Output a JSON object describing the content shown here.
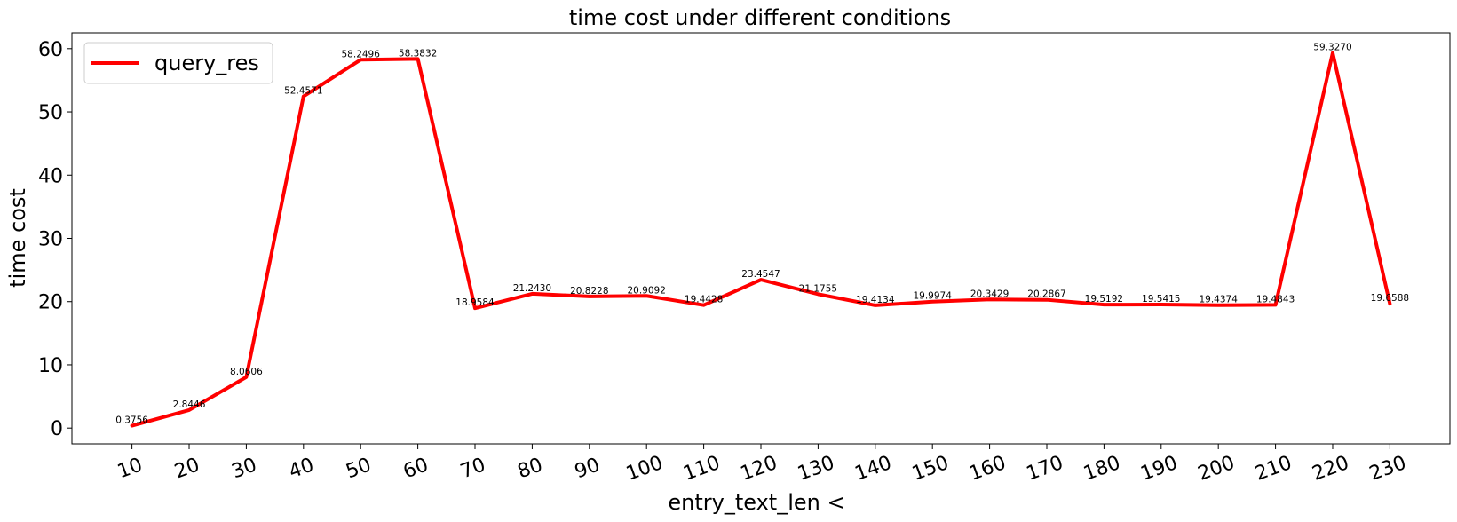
{
  "chart_data": {
    "type": "line",
    "title": "time cost under different conditions",
    "xlabel": "entry_text_len <",
    "ylabel": "time cost",
    "x": [
      10,
      20,
      30,
      40,
      50,
      60,
      70,
      80,
      90,
      100,
      110,
      120,
      130,
      140,
      150,
      160,
      170,
      180,
      190,
      200,
      210,
      220,
      230
    ],
    "ylim": [
      -2.5,
      62.5
    ],
    "yticks": [
      0,
      10,
      20,
      30,
      40,
      50,
      60
    ],
    "grid": false,
    "legend_position": "upper-left",
    "series": [
      {
        "name": "query_res",
        "color": "#ff0000",
        "values": [
          0.3756,
          2.8446,
          8.0606,
          52.4571,
          58.2496,
          58.3832,
          18.9584,
          21.243,
          20.8228,
          20.9092,
          19.4428,
          23.4547,
          21.1755,
          19.4134,
          19.9974,
          20.3429,
          20.2867,
          19.5192,
          19.5415,
          19.4374,
          19.4843,
          59.327,
          19.6588
        ],
        "labels": [
          "0.3756",
          "2.8446",
          "8.0606",
          "52.4571",
          "58.2496",
          "58.3832",
          "18.9584",
          "21.2430",
          "20.8228",
          "20.9092",
          "19.4428",
          "23.4547",
          "21.1755",
          "19.4134",
          "19.9974",
          "20.3429",
          "20.2867",
          "19.5192",
          "19.5415",
          "19.4374",
          "19.4843",
          "59.3270",
          "19.6588"
        ]
      }
    ]
  }
}
